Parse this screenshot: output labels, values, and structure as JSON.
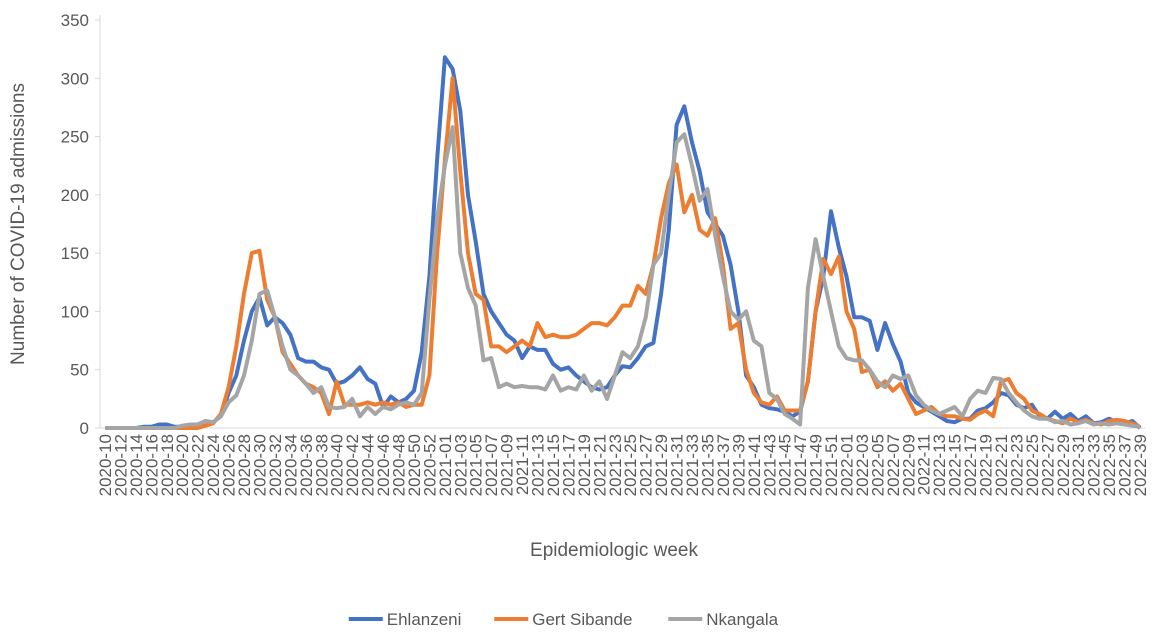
{
  "chart_data": {
    "type": "line",
    "x_label": "Epidemiologic week",
    "y_label": "Number of COVID-19 admissions",
    "categories": [
      "2020-10",
      null,
      "2020-12",
      null,
      "2020-14",
      null,
      "2020-16",
      null,
      "2020-18",
      null,
      "2020-20",
      null,
      "2020-22",
      null,
      "2020-24",
      null,
      "2020-26",
      null,
      "2020-28",
      null,
      "2020-30",
      null,
      "2020-32",
      null,
      "2020-34",
      null,
      "2020-36",
      null,
      "2020-38",
      null,
      "2020-40",
      null,
      "2020-42",
      null,
      "2020-44",
      null,
      "2020-46",
      null,
      "2020-48",
      null,
      "2020-50",
      null,
      "2020-52",
      null,
      "2021-01",
      null,
      "2021-03",
      null,
      "2021-05",
      null,
      "2021-07",
      null,
      "2021-09",
      null,
      "2021-11",
      null,
      "2021-13",
      null,
      "2021-15",
      null,
      "2021-17",
      null,
      "2021-19",
      null,
      "2021-21",
      null,
      "2021-23",
      null,
      "2021-25",
      null,
      "2021-27",
      null,
      "2021-29",
      null,
      "2021-31",
      null,
      "2021-33",
      null,
      "2021-35",
      null,
      "2021-37",
      null,
      "2021-39",
      null,
      "2021-41",
      null,
      "2021-43",
      null,
      "2021-45",
      null,
      "2021-47",
      null,
      "2021-49",
      null,
      "2021-51",
      null,
      "2022-01",
      null,
      "2022-03",
      null,
      "2022-05",
      null,
      "2022-07",
      null,
      "2022-09",
      null,
      "2022-11",
      null,
      "2022-13",
      null,
      "2022-15",
      null,
      "2022-17",
      null,
      "2022-19",
      null,
      "2022-21",
      null,
      "2022-23",
      null,
      "2022-25",
      null,
      "2022-27",
      null,
      "2022-29",
      null,
      "2022-31",
      null,
      "2022-33",
      null,
      "2022-35",
      null,
      "2022-37",
      null,
      "2022-39"
    ],
    "series": [
      {
        "name": "Ehlanzeni",
        "color": "#4472c4",
        "values": [
          0,
          0,
          0,
          0,
          0,
          1,
          1,
          3,
          3,
          1,
          1,
          1,
          2,
          2,
          5,
          10,
          30,
          45,
          75,
          100,
          112,
          88,
          95,
          90,
          80,
          60,
          57,
          57,
          52,
          50,
          38,
          40,
          45,
          52,
          42,
          38,
          18,
          27,
          22,
          25,
          32,
          65,
          130,
          230,
          318,
          308,
          272,
          200,
          160,
          115,
          100,
          90,
          80,
          75,
          60,
          70,
          67,
          67,
          55,
          50,
          52,
          45,
          40,
          35,
          33,
          35,
          45,
          53,
          52,
          60,
          70,
          73,
          115,
          170,
          260,
          276,
          245,
          220,
          185,
          175,
          165,
          140,
          100,
          45,
          35,
          20,
          17,
          16,
          14,
          10,
          14,
          40,
          100,
          130,
          186,
          155,
          130,
          95,
          95,
          92,
          67,
          90,
          72,
          57,
          30,
          22,
          18,
          14,
          10,
          6,
          5,
          8,
          8,
          15,
          17,
          22,
          30,
          28,
          20,
          17,
          20,
          10,
          8,
          14,
          8,
          12,
          6,
          10,
          4,
          5,
          8,
          5,
          4,
          6,
          0
        ]
      },
      {
        "name": "Gert Sibande",
        "color": "#ed7d31",
        "values": [
          0,
          0,
          0,
          0,
          0,
          0,
          0,
          0,
          0,
          0,
          0,
          0,
          0,
          2,
          4,
          12,
          35,
          70,
          115,
          150,
          152,
          110,
          95,
          65,
          55,
          45,
          38,
          35,
          30,
          12,
          40,
          20,
          20,
          20,
          22,
          20,
          22,
          20,
          22,
          18,
          20,
          20,
          45,
          150,
          230,
          300,
          220,
          150,
          115,
          110,
          70,
          70,
          65,
          70,
          75,
          70,
          90,
          78,
          80,
          78,
          78,
          80,
          85,
          90,
          90,
          88,
          95,
          105,
          105,
          122,
          115,
          140,
          180,
          210,
          226,
          185,
          200,
          170,
          165,
          180,
          140,
          85,
          90,
          50,
          30,
          22,
          20,
          27,
          15,
          15,
          15,
          40,
          100,
          145,
          132,
          147,
          100,
          85,
          48,
          50,
          35,
          40,
          32,
          38,
          25,
          12,
          15,
          18,
          12,
          10,
          10,
          8,
          7,
          12,
          15,
          10,
          40,
          42,
          30,
          25,
          15,
          12,
          8,
          6,
          4,
          8,
          5,
          7,
          4,
          3,
          6,
          7,
          6,
          4,
          1
        ]
      },
      {
        "name": "Nkangala",
        "color": "#a5a5a5",
        "values": [
          0,
          0,
          0,
          0,
          0,
          0,
          0,
          0,
          0,
          0,
          2,
          3,
          3,
          6,
          5,
          10,
          22,
          28,
          45,
          75,
          115,
          118,
          95,
          70,
          50,
          45,
          38,
          30,
          35,
          18,
          17,
          18,
          25,
          10,
          18,
          12,
          18,
          16,
          20,
          22,
          20,
          30,
          110,
          180,
          225,
          258,
          150,
          120,
          105,
          58,
          60,
          35,
          38,
          35,
          36,
          35,
          35,
          33,
          45,
          32,
          35,
          33,
          45,
          32,
          40,
          25,
          45,
          65,
          60,
          70,
          95,
          140,
          150,
          200,
          245,
          252,
          225,
          195,
          205,
          165,
          130,
          100,
          93,
          100,
          75,
          70,
          30,
          25,
          12,
          8,
          3,
          120,
          162,
          130,
          100,
          70,
          60,
          58,
          58,
          50,
          40,
          35,
          45,
          42,
          45,
          28,
          20,
          15,
          12,
          15,
          18,
          10,
          25,
          32,
          30,
          43,
          42,
          30,
          22,
          15,
          10,
          8,
          8,
          5,
          6,
          3,
          4,
          6,
          3,
          4,
          3,
          4,
          3,
          2,
          1
        ]
      }
    ],
    "ylim": [
      0,
      350
    ],
    "yticks": [
      0,
      50,
      100,
      150,
      200,
      250,
      300,
      350
    ],
    "grid": false,
    "legend": "bottom"
  }
}
